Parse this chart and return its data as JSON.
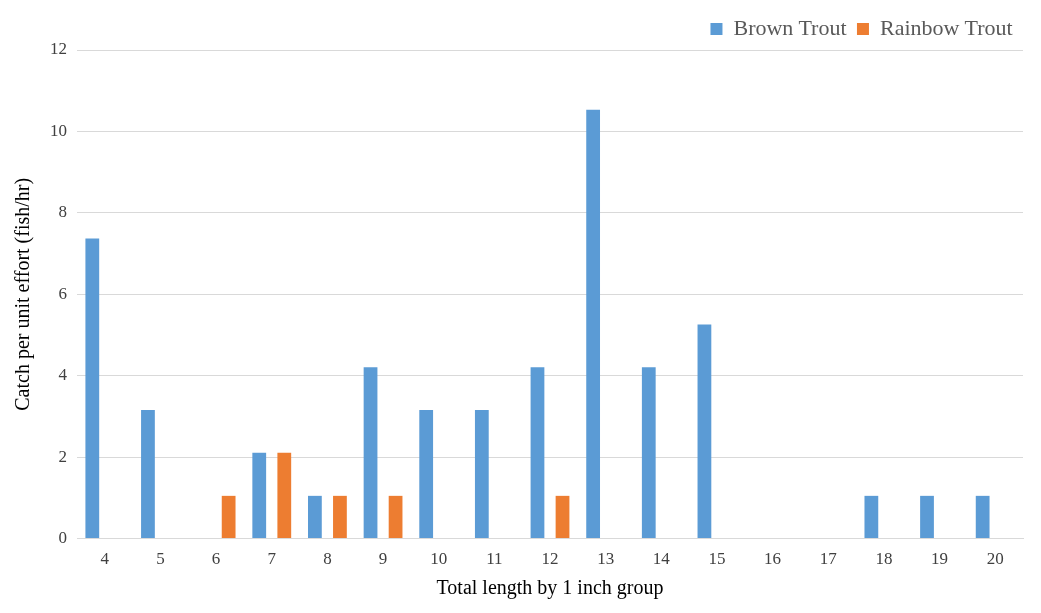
{
  "chart_data": {
    "type": "bar",
    "xlabel": "Total length by 1 inch group",
    "ylabel": "Catch per unit effort (fish/hr)",
    "categories": [
      "4",
      "5",
      "6",
      "7",
      "8",
      "9",
      "10",
      "11",
      "12",
      "13",
      "14",
      "15",
      "16",
      "17",
      "18",
      "19",
      "20"
    ],
    "series": [
      {
        "name": "Brown Trout",
        "color": "#5b9bd5",
        "values": [
          7.37,
          3.16,
          0,
          2.11,
          1.05,
          4.21,
          3.16,
          3.16,
          4.21,
          10.53,
          4.21,
          5.26,
          0,
          0,
          1.05,
          1.05,
          1.05
        ]
      },
      {
        "name": "Rainbow Trout",
        "color": "#ed7d31",
        "values": [
          0,
          0,
          1.05,
          2.11,
          1.05,
          1.05,
          0,
          0,
          1.05,
          0,
          0,
          0,
          0,
          0,
          0,
          0,
          0
        ]
      }
    ],
    "ylim": [
      0,
      12
    ],
    "yticks": [
      0,
      2,
      4,
      6,
      8,
      10,
      12
    ],
    "grid": "y",
    "legend": "top right"
  }
}
